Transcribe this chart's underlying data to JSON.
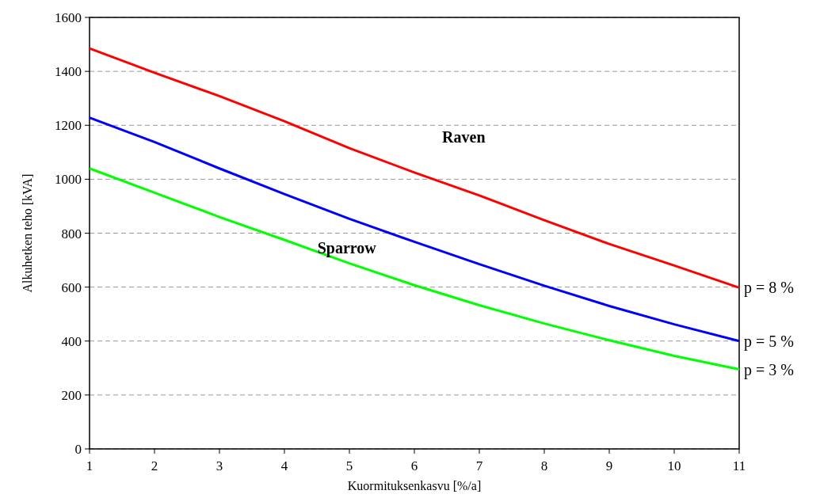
{
  "chart_data": {
    "type": "line",
    "xlabel": "Kuormituksenkasvu [%/a]",
    "ylabel": "Alkuhetken teho [kVA]",
    "x": [
      1,
      2,
      3,
      4,
      5,
      6,
      7,
      8,
      9,
      10,
      11
    ],
    "xlim": [
      1,
      11
    ],
    "xticks": [
      1,
      2,
      3,
      4,
      5,
      6,
      7,
      8,
      9,
      10,
      11
    ],
    "ylim": [
      0,
      1600
    ],
    "yticks": [
      0,
      200,
      400,
      600,
      800,
      1000,
      1200,
      1400,
      1600
    ],
    "grid": "y",
    "legend": false,
    "marker": "none",
    "line_style": "solid",
    "series": [
      {
        "name": "p = 8 %",
        "color": "#ff0000",
        "values": [
          1485,
          1395,
          1308,
          1215,
          1115,
          1025,
          940,
          848,
          760,
          680,
          598
        ]
      },
      {
        "name": "p = 5 %",
        "color": "#0000ff",
        "values": [
          1228,
          1138,
          1040,
          945,
          853,
          768,
          685,
          605,
          530,
          462,
          400
        ]
      },
      {
        "name": "p = 3 %",
        "color": "#00ff00",
        "values": [
          1040,
          950,
          860,
          775,
          688,
          607,
          533,
          465,
          403,
          345,
          295
        ]
      }
    ],
    "annotations": [
      "Raven",
      "Sparrow"
    ]
  }
}
